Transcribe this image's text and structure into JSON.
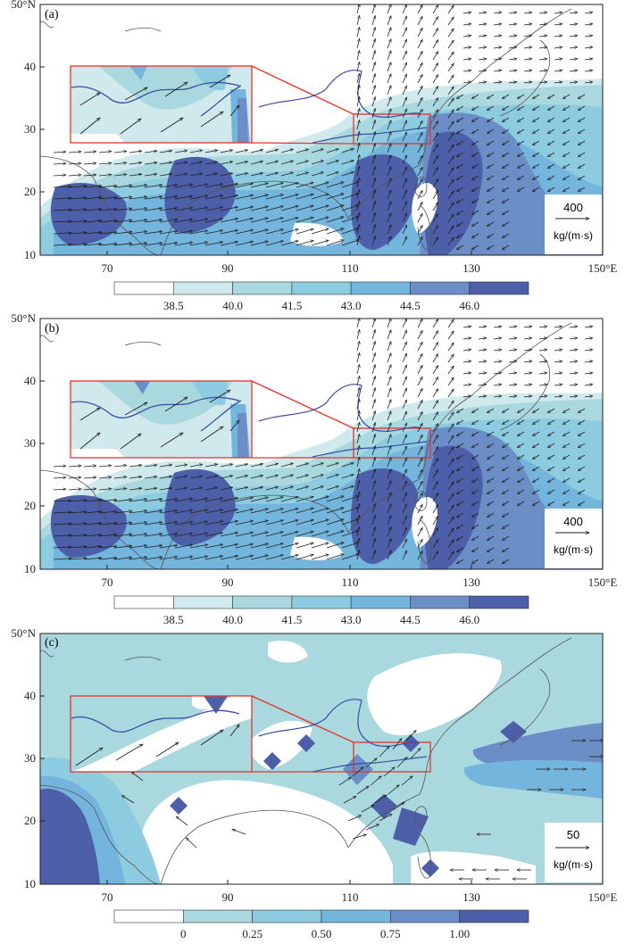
{
  "colors": {
    "c0": "#ffffff",
    "c1": "#cfe9ec",
    "c2": "#a9d8df",
    "c3": "#8dcbe0",
    "c4": "#74b5dd",
    "c5": "#6b8ec7",
    "c6": "#4d5fa8",
    "coast": "#555555",
    "river": "#3a4fa3",
    "box": "#e8322a",
    "arrow": "#222222"
  },
  "axes": {
    "x_ticks": [
      "70",
      "90",
      "110",
      "130",
      "150°E"
    ],
    "y_ticks": [
      "50°N",
      "40",
      "30",
      "20",
      "10"
    ]
  },
  "panels": [
    {
      "id": "a",
      "label": "(a)",
      "ref_vector": {
        "value": "400",
        "unit": "kg/(m·s)"
      },
      "colorbar_labels": [
        "38.5",
        "40.0",
        "41.5",
        "43.0",
        "44.5",
        "46.0"
      ]
    },
    {
      "id": "b",
      "label": "(b)",
      "ref_vector": {
        "value": "400",
        "unit": "kg/(m·s)"
      },
      "colorbar_labels": [
        "38.5",
        "40.0",
        "41.5",
        "43.0",
        "44.5",
        "46.0"
      ]
    },
    {
      "id": "c",
      "label": "(c)",
      "ref_vector": {
        "value": "50",
        "unit": "kg/(m·s)"
      },
      "colorbar_labels": [
        "0",
        "0.25",
        "0.50",
        "0.75",
        "1.00"
      ]
    }
  ]
}
